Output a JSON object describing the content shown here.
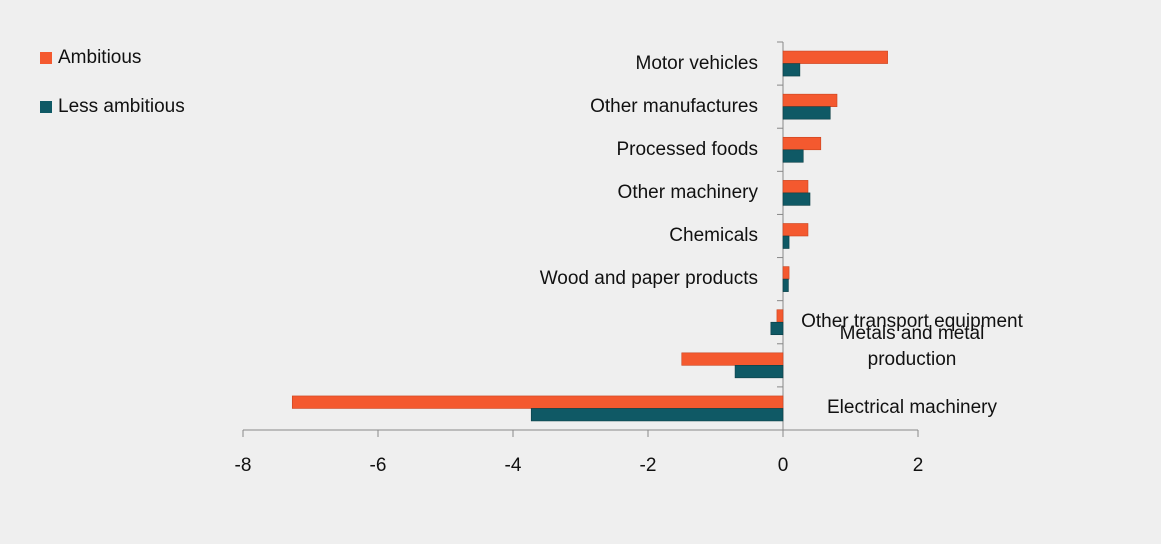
{
  "chart_data": {
    "type": "hbar",
    "categories": [
      "Motor vehicles",
      "Other manufactures",
      "Processed foods",
      "Other machinery",
      "Chemicals",
      "Wood and paper products",
      "Other transport equipment",
      "Metals and metal production",
      "Electrical machinery"
    ],
    "series": [
      {
        "name": "Ambitious",
        "color": "#f4592f",
        "values": [
          1.55,
          0.8,
          0.56,
          0.37,
          0.37,
          0.09,
          -0.09,
          -1.5,
          -7.27
        ]
      },
      {
        "name": "Less ambitious",
        "color": "#0f5965",
        "values": [
          0.25,
          0.7,
          0.3,
          0.4,
          0.09,
          0.08,
          -0.18,
          -0.71,
          -3.73
        ]
      }
    ],
    "xlim": [
      -8,
      2
    ],
    "xticks": [
      -8,
      -6,
      -4,
      -2,
      0,
      2
    ],
    "legend": "top-left"
  }
}
